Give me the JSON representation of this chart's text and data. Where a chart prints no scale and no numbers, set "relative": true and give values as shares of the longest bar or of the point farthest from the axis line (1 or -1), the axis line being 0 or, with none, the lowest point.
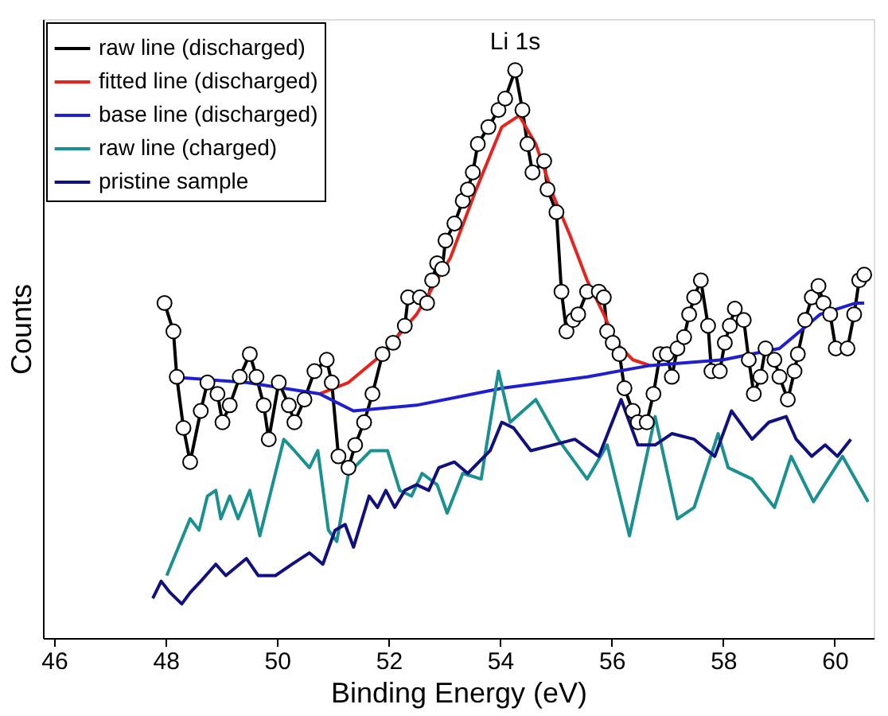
{
  "chart_data": {
    "type": "line",
    "xlabel": "Binding Energy (eV)",
    "ylabel": "Counts",
    "relative": true,
    "xlim": [
      45.8,
      60.7
    ],
    "xticks": [
      46,
      48,
      50,
      52,
      54,
      56,
      58,
      60
    ],
    "grid": false,
    "legend": "top left",
    "line_style": "solid",
    "annotations": [
      {
        "text": "Li 1s",
        "x": 54.27,
        "y": 1.0
      }
    ],
    "series": [
      {
        "name": "raw line (discharged)",
        "color": "#000000",
        "marker": "circle",
        "x": [
          47.98,
          48.14,
          48.2,
          48.32,
          48.44,
          48.63,
          48.75,
          48.93,
          49.02,
          49.15,
          49.33,
          49.51,
          49.63,
          49.76,
          49.85,
          50.03,
          50.21,
          50.31,
          50.49,
          50.67,
          50.89,
          50.98,
          51.1,
          51.28,
          51.4,
          51.56,
          51.71,
          51.89,
          52.08,
          52.29,
          52.35,
          52.56,
          52.69,
          52.78,
          52.87,
          52.96,
          53.02,
          53.18,
          53.33,
          53.42,
          53.51,
          53.6,
          53.79,
          53.97,
          54.09,
          54.27,
          54.4,
          54.49,
          54.58,
          54.79,
          54.85,
          55.01,
          55.1,
          55.19,
          55.31,
          55.4,
          55.56,
          55.77,
          55.86,
          55.92,
          56.02,
          56.14,
          56.23,
          56.38,
          56.47,
          56.63,
          56.75,
          56.87,
          56.99,
          57.08,
          57.18,
          57.3,
          57.39,
          57.48,
          57.6,
          57.73,
          57.79,
          57.94,
          58.03,
          58.12,
          58.21,
          58.37,
          58.46,
          58.55,
          58.67,
          58.76,
          58.92,
          59.01,
          59.16,
          59.28,
          59.34,
          59.47,
          59.59,
          59.71,
          59.8,
          59.92,
          60.02,
          60.23,
          60.35,
          60.44,
          60.53
        ],
        "values": [
          0.59,
          0.54,
          0.46,
          0.37,
          0.31,
          0.4,
          0.45,
          0.43,
          0.38,
          0.41,
          0.46,
          0.5,
          0.46,
          0.41,
          0.35,
          0.45,
          0.41,
          0.38,
          0.42,
          0.47,
          0.49,
          0.45,
          0.32,
          0.3,
          0.34,
          0.38,
          0.43,
          0.5,
          0.52,
          0.55,
          0.6,
          0.6,
          0.59,
          0.63,
          0.66,
          0.65,
          0.7,
          0.73,
          0.77,
          0.79,
          0.82,
          0.87,
          0.9,
          0.93,
          0.95,
          1.0,
          0.93,
          0.87,
          0.82,
          0.84,
          0.79,
          0.75,
          0.61,
          0.54,
          0.56,
          0.57,
          0.61,
          0.61,
          0.6,
          0.54,
          0.52,
          0.5,
          0.44,
          0.4,
          0.38,
          0.38,
          0.43,
          0.5,
          0.5,
          0.46,
          0.51,
          0.53,
          0.57,
          0.6,
          0.63,
          0.55,
          0.47,
          0.47,
          0.52,
          0.55,
          0.58,
          0.56,
          0.49,
          0.43,
          0.46,
          0.51,
          0.49,
          0.46,
          0.42,
          0.47,
          0.5,
          0.56,
          0.6,
          0.62,
          0.59,
          0.57,
          0.51,
          0.51,
          0.57,
          0.63,
          0.64
        ]
      },
      {
        "name": "fitted line (discharged)",
        "color": "#e8231e",
        "marker": "none",
        "x": [
          50.76,
          51.28,
          51.89,
          52.5,
          53.11,
          53.57,
          54.03,
          54.34,
          54.64,
          54.95,
          55.25,
          55.56,
          55.86,
          56.08,
          56.38,
          56.69
        ],
        "values": [
          0.43,
          0.45,
          0.5,
          0.57,
          0.67,
          0.79,
          0.9,
          0.92,
          0.87,
          0.78,
          0.71,
          0.63,
          0.57,
          0.52,
          0.49,
          0.48
        ]
      },
      {
        "name": "base line (discharged)",
        "color": "#1f1fd0",
        "marker": "none",
        "x": [
          48.08,
          49.45,
          50.76,
          51.37,
          52.5,
          54.03,
          55.56,
          56.69,
          58.0,
          59.01,
          59.74,
          60.38,
          60.53
        ],
        "values": [
          0.46,
          0.45,
          0.43,
          0.4,
          0.41,
          0.44,
          0.46,
          0.48,
          0.49,
          0.51,
          0.57,
          0.59,
          0.59
        ]
      },
      {
        "name": "raw line (charged)",
        "color": "#1a9090",
        "marker": "none",
        "x": [
          48.02,
          48.44,
          48.6,
          48.75,
          48.9,
          48.99,
          49.15,
          49.3,
          49.51,
          49.69,
          50.12,
          50.31,
          50.58,
          50.73,
          50.92,
          51.07,
          51.28,
          51.68,
          51.98,
          52.2,
          52.41,
          52.6,
          52.87,
          53.05,
          53.33,
          53.66,
          53.97,
          54.18,
          54.64,
          55.04,
          55.56,
          55.92,
          56.32,
          56.78,
          57.18,
          57.48,
          57.91,
          58.09,
          58.52,
          58.92,
          59.22,
          59.62,
          60.14,
          60.6
        ],
        "values": [
          0.11,
          0.21,
          0.19,
          0.25,
          0.26,
          0.21,
          0.25,
          0.21,
          0.26,
          0.18,
          0.35,
          0.33,
          0.3,
          0.33,
          0.19,
          0.17,
          0.29,
          0.33,
          0.33,
          0.26,
          0.25,
          0.29,
          0.27,
          0.22,
          0.29,
          0.28,
          0.47,
          0.38,
          0.42,
          0.35,
          0.28,
          0.34,
          0.18,
          0.39,
          0.21,
          0.23,
          0.36,
          0.3,
          0.28,
          0.23,
          0.32,
          0.24,
          0.32,
          0.24
        ]
      },
      {
        "name": "pristine sample",
        "color": "#101080",
        "marker": "none",
        "x": [
          47.77,
          47.92,
          48.08,
          48.29,
          48.44,
          48.63,
          48.9,
          49.08,
          49.45,
          49.66,
          49.97,
          50.27,
          50.58,
          50.82,
          51.04,
          51.22,
          51.37,
          51.65,
          51.8,
          51.95,
          52.11,
          52.29,
          52.5,
          52.72,
          52.9,
          53.18,
          53.42,
          53.82,
          54.03,
          54.24,
          54.55,
          54.95,
          55.34,
          55.77,
          56.17,
          56.47,
          56.78,
          57.08,
          57.48,
          57.85,
          58.15,
          58.52,
          58.82,
          59.13,
          59.31,
          59.59,
          59.83,
          60.05,
          60.29
        ],
        "values": [
          0.07,
          0.1,
          0.08,
          0.06,
          0.08,
          0.1,
          0.13,
          0.11,
          0.14,
          0.11,
          0.11,
          0.13,
          0.15,
          0.13,
          0.19,
          0.2,
          0.16,
          0.25,
          0.23,
          0.26,
          0.23,
          0.26,
          0.27,
          0.26,
          0.3,
          0.31,
          0.29,
          0.33,
          0.38,
          0.37,
          0.33,
          0.34,
          0.35,
          0.32,
          0.42,
          0.34,
          0.34,
          0.36,
          0.35,
          0.32,
          0.4,
          0.35,
          0.38,
          0.39,
          0.35,
          0.32,
          0.34,
          0.32,
          0.35
        ]
      }
    ]
  }
}
